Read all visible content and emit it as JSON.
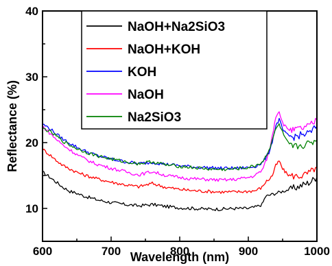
{
  "chart_data": {
    "type": "line",
    "xlabel": "Wavelength (nm)",
    "ylabel": "Reflectance (%)",
    "xlim": [
      600,
      1000
    ],
    "ylim": [
      5,
      40
    ],
    "x_ticks": [
      600,
      700,
      800,
      900,
      1000
    ],
    "y_ticks": [
      10,
      20,
      30,
      40
    ],
    "x_tick_labels": [
      "600",
      "700",
      "800",
      "900",
      "1000"
    ],
    "y_tick_labels": [
      "10",
      "20",
      "30",
      "40"
    ],
    "grid": false,
    "legend_position": "top-center",
    "series": [
      {
        "name": "NaOH+Na2SiO3",
        "color": "#000000",
        "x": [
          600,
          610,
          620,
          630,
          640,
          650,
          660,
          670,
          680,
          700,
          720,
          740,
          760,
          780,
          800,
          820,
          840,
          860,
          880,
          900,
          910,
          920,
          925,
          930,
          940,
          950,
          960,
          970,
          980,
          990,
          1000
        ],
        "y": [
          15.5,
          14.8,
          14.0,
          13.2,
          12.6,
          12.3,
          11.9,
          11.6,
          11.3,
          10.9,
          10.6,
          10.4,
          10.6,
          10.3,
          10.1,
          10.0,
          9.9,
          9.9,
          10.0,
          10.0,
          10.2,
          10.6,
          11.8,
          12.0,
          12.3,
          12.6,
          12.9,
          13.2,
          13.6,
          14.0,
          14.8
        ]
      },
      {
        "name": "NaOH+KOH",
        "color": "#ff0000",
        "x": [
          600,
          610,
          620,
          630,
          640,
          650,
          660,
          670,
          680,
          700,
          720,
          740,
          760,
          780,
          800,
          820,
          840,
          860,
          880,
          900,
          910,
          920,
          925,
          930,
          935,
          940,
          945,
          950,
          955,
          960,
          970,
          980,
          990,
          1000
        ],
        "y": [
          19.0,
          18.2,
          17.3,
          16.5,
          16.0,
          15.5,
          15.1,
          14.8,
          14.5,
          14.0,
          13.6,
          13.3,
          13.8,
          13.2,
          12.9,
          12.7,
          12.6,
          12.5,
          12.5,
          12.6,
          12.7,
          13.2,
          14.0,
          14.4,
          15.0,
          16.5,
          17.2,
          16.0,
          15.4,
          15.0,
          14.9,
          15.0,
          15.5,
          16.3
        ]
      },
      {
        "name": "KOH",
        "color": "#0000ff",
        "x": [
          600,
          610,
          620,
          630,
          640,
          650,
          660,
          670,
          680,
          700,
          720,
          740,
          760,
          780,
          800,
          820,
          840,
          860,
          880,
          900,
          910,
          920,
          925,
          930,
          935,
          940,
          945,
          950,
          955,
          960,
          965,
          970,
          980,
          990,
          1000
        ],
        "y": [
          22.8,
          22.2,
          21.3,
          20.5,
          19.9,
          19.3,
          18.8,
          18.4,
          18.0,
          17.5,
          17.1,
          16.8,
          17.0,
          16.7,
          16.5,
          16.3,
          16.2,
          16.1,
          16.1,
          16.2,
          16.4,
          16.9,
          17.6,
          18.5,
          20.2,
          22.5,
          23.5,
          22.0,
          21.3,
          21.0,
          20.8,
          21.0,
          21.2,
          21.5,
          22.5
        ]
      },
      {
        "name": "NaOH",
        "color": "#ff00ff",
        "x": [
          600,
          610,
          620,
          630,
          640,
          650,
          660,
          670,
          680,
          700,
          720,
          740,
          760,
          780,
          800,
          820,
          840,
          860,
          880,
          900,
          910,
          920,
          925,
          930,
          935,
          940,
          945,
          950,
          955,
          960,
          965,
          970,
          980,
          990,
          1000
        ],
        "y": [
          22.5,
          21.5,
          20.5,
          19.6,
          18.9,
          18.2,
          17.6,
          17.1,
          16.7,
          16.1,
          15.6,
          15.1,
          15.6,
          15.0,
          14.7,
          14.5,
          14.4,
          14.3,
          14.4,
          14.7,
          15.0,
          15.8,
          17.0,
          18.5,
          21.0,
          24.0,
          24.8,
          23.0,
          22.3,
          22.0,
          21.8,
          22.0,
          22.2,
          22.6,
          23.4
        ]
      },
      {
        "name": "Na2SiO3",
        "color": "#008000",
        "x": [
          600,
          610,
          620,
          630,
          640,
          650,
          660,
          670,
          680,
          700,
          720,
          740,
          760,
          780,
          800,
          820,
          840,
          860,
          880,
          900,
          910,
          920,
          925,
          930,
          935,
          940,
          945,
          950,
          955,
          960,
          965,
          970,
          980,
          990,
          1000
        ],
        "y": [
          22.2,
          21.7,
          21.0,
          20.2,
          19.6,
          19.1,
          18.7,
          18.3,
          18.0,
          17.5,
          17.1,
          16.8,
          17.1,
          16.6,
          16.4,
          16.2,
          16.0,
          15.9,
          16.0,
          16.2,
          16.5,
          17.0,
          17.8,
          18.8,
          20.5,
          22.0,
          22.8,
          21.5,
          20.4,
          19.6,
          19.3,
          19.4,
          19.6,
          19.9,
          20.4
        ]
      }
    ]
  }
}
